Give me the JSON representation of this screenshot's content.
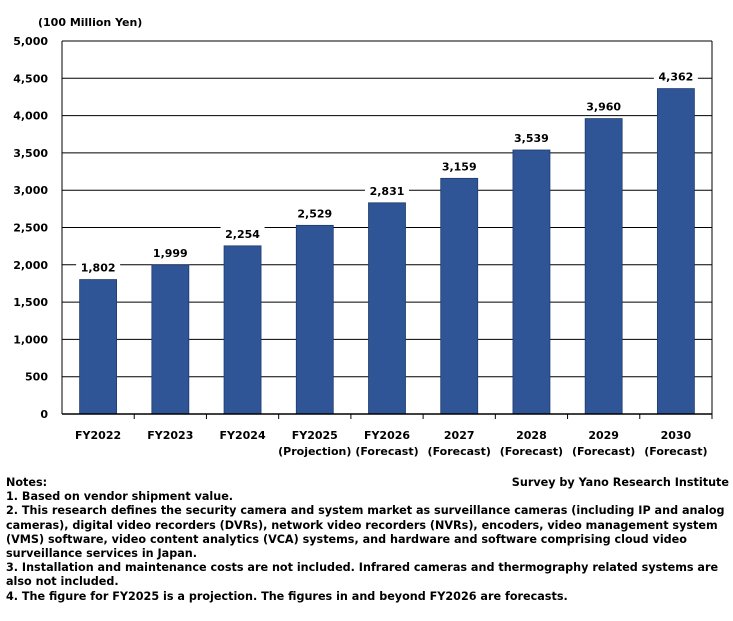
{
  "chart_data": {
    "type": "bar",
    "ylabel": "(100 Million Yen)",
    "ylim": [
      0,
      5000
    ],
    "yticks": [
      0,
      500,
      1000,
      1500,
      2000,
      2500,
      3000,
      3500,
      4000,
      4500,
      5000
    ],
    "ytick_labels": [
      "0",
      "500",
      "1,000",
      "1,500",
      "2,000",
      "2,500",
      "3,000",
      "3,500",
      "4,000",
      "4,500",
      "5,000"
    ],
    "grid": true,
    "categories": [
      [
        "FY2022",
        ""
      ],
      [
        "FY2023",
        ""
      ],
      [
        "FY2024",
        ""
      ],
      [
        "FY2025",
        "(Projection)"
      ],
      [
        "FY2026",
        "(Forecast)"
      ],
      [
        "2027",
        "(Forecast)"
      ],
      [
        "2028",
        "(Forecast)"
      ],
      [
        "2029",
        "(Forecast)"
      ],
      [
        "2030",
        "(Forecast)"
      ]
    ],
    "values": [
      1802,
      1999,
      2254,
      2529,
      2831,
      3159,
      3539,
      3960,
      4362
    ],
    "data_labels": [
      "1,802",
      "1,999",
      "2,254",
      "2,529",
      "2,831",
      "3,159",
      "3,539",
      "3,960",
      "4,362"
    ],
    "bar_color": "#2F5597"
  },
  "source": "Survey by Yano Research Institute",
  "notes": {
    "title": "Notes:",
    "lines": [
      "1. Based on vendor shipment value.",
      "2. This research defines the security camera and system market as surveillance cameras (including IP and analog cameras), digital video recorders (DVRs), network video recorders (NVRs), encoders, video management system (VMS) software, video content analytics (VCA) systems, and hardware and software comprising cloud video surveillance services in Japan.",
      "3. Installation and maintenance costs are not included. Infrared cameras and thermography related systems are also not included.",
      "4. The figure for FY2025 is a projection. The figures in and beyond FY2026 are forecasts."
    ]
  }
}
